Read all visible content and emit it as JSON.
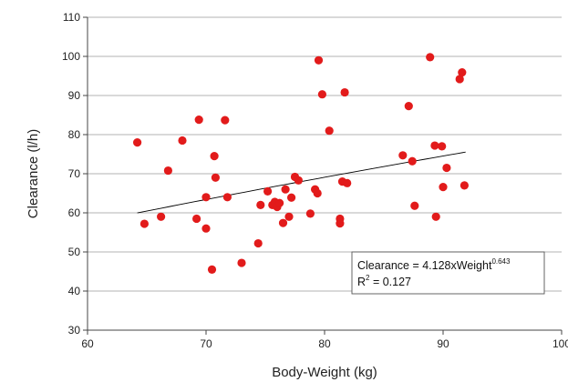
{
  "chart_data": {
    "type": "scatter",
    "xlabel": "Body-Weight (kg)",
    "ylabel": "Clearance (l/h)",
    "xlim": [
      60,
      100
    ],
    "ylim": [
      30,
      110
    ],
    "xticks": [
      60,
      70,
      80,
      90,
      100
    ],
    "xtick_labels": [
      "60",
      "70",
      "80",
      "90",
      "100"
    ],
    "yticks": [
      30,
      40,
      50,
      60,
      70,
      80,
      90,
      100,
      110
    ],
    "ytick_labels": [
      "30",
      "40",
      "50",
      "60",
      "70",
      "80",
      "90",
      "100",
      "110"
    ],
    "grid": "horizontal",
    "point_color": "#e21b1b",
    "trendline_color": "#000000",
    "points": [
      {
        "x": 64.2,
        "y": 78.0
      },
      {
        "x": 64.8,
        "y": 57.2
      },
      {
        "x": 66.2,
        "y": 59.0
      },
      {
        "x": 66.8,
        "y": 70.8
      },
      {
        "x": 68.0,
        "y": 78.5
      },
      {
        "x": 69.2,
        "y": 58.5
      },
      {
        "x": 69.4,
        "y": 83.8
      },
      {
        "x": 70.0,
        "y": 56.0
      },
      {
        "x": 70.0,
        "y": 64.0
      },
      {
        "x": 70.5,
        "y": 45.5
      },
      {
        "x": 70.7,
        "y": 74.5
      },
      {
        "x": 70.8,
        "y": 69.0
      },
      {
        "x": 71.6,
        "y": 83.7
      },
      {
        "x": 71.8,
        "y": 64.0
      },
      {
        "x": 73.0,
        "y": 47.2
      },
      {
        "x": 74.4,
        "y": 52.2
      },
      {
        "x": 74.6,
        "y": 62.0
      },
      {
        "x": 75.2,
        "y": 65.5
      },
      {
        "x": 75.6,
        "y": 62.0
      },
      {
        "x": 75.8,
        "y": 62.8
      },
      {
        "x": 76.0,
        "y": 61.5
      },
      {
        "x": 76.2,
        "y": 62.5
      },
      {
        "x": 76.5,
        "y": 57.4
      },
      {
        "x": 76.7,
        "y": 66.0
      },
      {
        "x": 77.0,
        "y": 59.0
      },
      {
        "x": 77.2,
        "y": 63.9
      },
      {
        "x": 77.5,
        "y": 69.2
      },
      {
        "x": 77.8,
        "y": 68.3
      },
      {
        "x": 78.8,
        "y": 59.8
      },
      {
        "x": 79.2,
        "y": 66.0
      },
      {
        "x": 79.4,
        "y": 65.0
      },
      {
        "x": 79.5,
        "y": 99.0
      },
      {
        "x": 79.8,
        "y": 90.3
      },
      {
        "x": 80.4,
        "y": 81.0
      },
      {
        "x": 81.3,
        "y": 57.3
      },
      {
        "x": 81.3,
        "y": 58.5
      },
      {
        "x": 81.5,
        "y": 68.0
      },
      {
        "x": 81.7,
        "y": 90.8
      },
      {
        "x": 81.9,
        "y": 67.6
      },
      {
        "x": 86.6,
        "y": 74.7
      },
      {
        "x": 87.1,
        "y": 87.3
      },
      {
        "x": 87.4,
        "y": 73.2
      },
      {
        "x": 87.6,
        "y": 61.8
      },
      {
        "x": 88.9,
        "y": 99.8
      },
      {
        "x": 89.3,
        "y": 77.2
      },
      {
        "x": 89.4,
        "y": 59.0
      },
      {
        "x": 89.9,
        "y": 77.0
      },
      {
        "x": 90.0,
        "y": 66.6
      },
      {
        "x": 90.3,
        "y": 71.5
      },
      {
        "x": 91.4,
        "y": 94.2
      },
      {
        "x": 91.6,
        "y": 95.9
      },
      {
        "x": 91.8,
        "y": 67.0
      }
    ],
    "trendline": {
      "type": "power",
      "coefficient": 4.128,
      "exponent": 0.643,
      "x_range": [
        64.2,
        91.9
      ]
    },
    "annotation": {
      "equation_prefix": "Clearance = 4.128xWeight",
      "equation_exponent": "0.643",
      "r2_prefix": "R",
      "r2_exponent": "2",
      "r2_value": " = 0.127"
    }
  }
}
